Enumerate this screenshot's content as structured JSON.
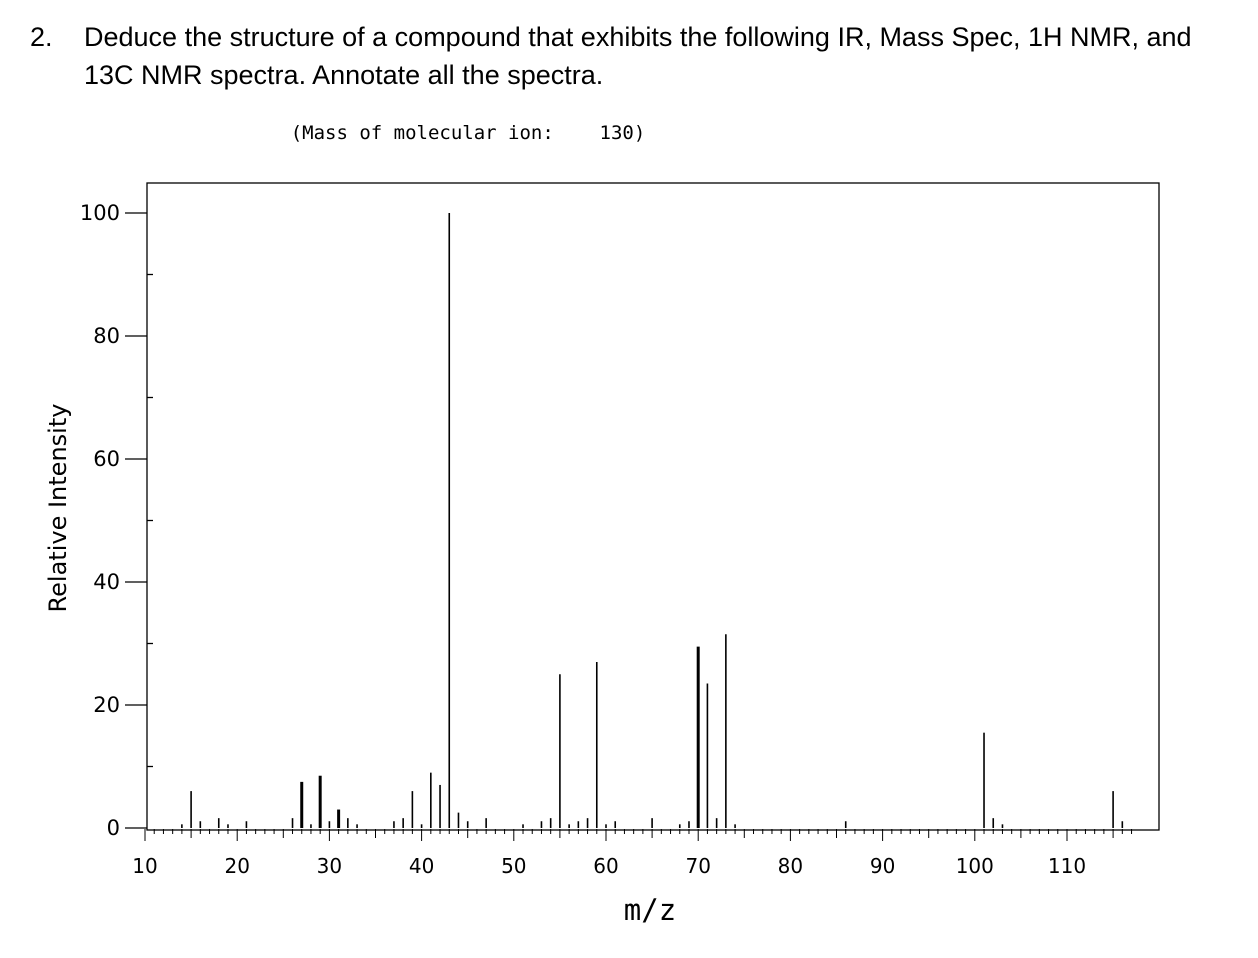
{
  "question": {
    "number": "2.",
    "text": "Deduce the structure of a compound that exhibits the following IR, Mass Spec, 1H NMR, and 13C NMR spectra. Annotate all the spectra."
  },
  "chart_data": {
    "type": "bar",
    "title": "(Mass of molecular ion:    130)",
    "xlabel": "m/z",
    "ylabel": "Relative Intensity",
    "xlim": [
      10,
      117.5
    ],
    "ylim": [
      0,
      100
    ],
    "x_ticks": [
      10,
      20,
      30,
      40,
      50,
      60,
      70,
      80,
      90,
      100,
      110
    ],
    "y_ticks": [
      0,
      20,
      40,
      60,
      80,
      100
    ],
    "grid": false,
    "colors": {
      "bars": "#000000",
      "axes": "#000000"
    },
    "peaks": [
      {
        "mz": 15,
        "intensity": 6
      },
      {
        "mz": 27,
        "intensity": 7.5
      },
      {
        "mz": 29,
        "intensity": 8.5
      },
      {
        "mz": 31,
        "intensity": 3
      },
      {
        "mz": 39,
        "intensity": 6
      },
      {
        "mz": 41,
        "intensity": 9
      },
      {
        "mz": 42,
        "intensity": 7
      },
      {
        "mz": 43,
        "intensity": 100
      },
      {
        "mz": 44,
        "intensity": 2.5
      },
      {
        "mz": 55,
        "intensity": 25
      },
      {
        "mz": 59,
        "intensity": 27
      },
      {
        "mz": 70,
        "intensity": 29.5
      },
      {
        "mz": 71,
        "intensity": 23.5
      },
      {
        "mz": 73,
        "intensity": 31.5
      },
      {
        "mz": 101,
        "intensity": 15.5
      },
      {
        "mz": 115,
        "intensity": 6
      }
    ],
    "minor_peaks": [
      14,
      16,
      18,
      19,
      21,
      26,
      28,
      30,
      32,
      33,
      37,
      38,
      40,
      45,
      47,
      51,
      53,
      54,
      56,
      57,
      58,
      60,
      61,
      65,
      68,
      69,
      72,
      74,
      86,
      102,
      103,
      116
    ]
  }
}
